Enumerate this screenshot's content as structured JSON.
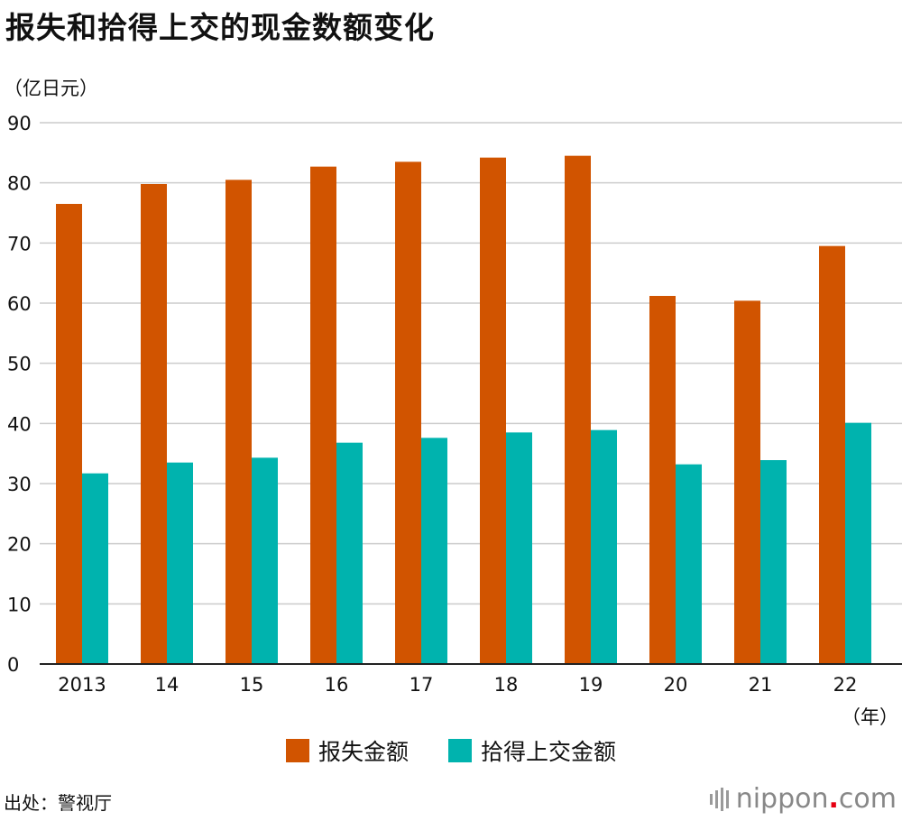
{
  "page": {
    "title": "报失和拾得上交的现金数额变化",
    "unit_label": "（亿日元）",
    "source": "出处：警视厅",
    "x_unit": "（年）",
    "logo": {
      "name": "nippon",
      "dot": ".",
      "suffix": "com"
    }
  },
  "colors": {
    "lost": "#d15400",
    "found": "#00b3ae",
    "grid": "#cccccc",
    "axis": "#222222"
  },
  "chart_data": {
    "type": "bar",
    "title": "报失和拾得上交的现金数额变化",
    "ylabel": "（亿日元）",
    "xlabel": "（年）",
    "categories": [
      "2013",
      "14",
      "15",
      "16",
      "17",
      "18",
      "19",
      "20",
      "21",
      "22"
    ],
    "series": [
      {
        "name": "报失金额",
        "color": "#d15400",
        "values": [
          76.5,
          79.8,
          80.5,
          82.7,
          83.5,
          84.2,
          84.5,
          61.2,
          60.4,
          69.5
        ]
      },
      {
        "name": "拾得上交金额",
        "color": "#00b3ae",
        "values": [
          31.7,
          33.5,
          34.3,
          36.8,
          37.6,
          38.5,
          38.9,
          33.2,
          33.9,
          40.1
        ]
      }
    ],
    "ylim": [
      0,
      90
    ],
    "yticks": [
      0,
      10,
      20,
      30,
      40,
      50,
      60,
      70,
      80,
      90
    ],
    "grid": true,
    "legend": "bottom-center"
  }
}
